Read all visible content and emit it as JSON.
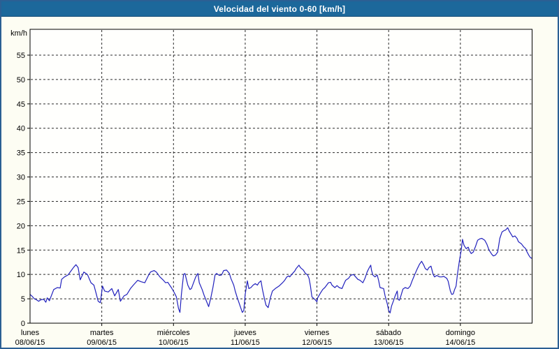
{
  "window": {
    "title": "Velocidad del viento 0-60 [km/h]",
    "titlebar_color": "#1c689b",
    "border_color": "#2b5f93",
    "background": "#fdfdf3"
  },
  "chart_data": {
    "type": "line",
    "title": "Velocidad del viento 0-60 [km/h]",
    "xlabel": "",
    "ylabel": "km/h",
    "ylim": [
      0,
      60
    ],
    "xlim_days": [
      0,
      7
    ],
    "grid": "dashed",
    "legend": "none",
    "plot_bg": "#fffffd",
    "grid_color": "#2a2a2a",
    "line_color": "#2121bd",
    "yticks": [
      "0",
      "5",
      "10",
      "15",
      "20",
      "25",
      "30",
      "35",
      "40",
      "45",
      "50",
      "55"
    ],
    "days": [
      {
        "name": "lunes",
        "date": "08/06/15"
      },
      {
        "name": "martes",
        "date": "09/06/15"
      },
      {
        "name": "miércoles",
        "date": "10/06/15"
      },
      {
        "name": "jueves",
        "date": "11/06/15"
      },
      {
        "name": "viernes",
        "date": "12/06/15"
      },
      {
        "name": "sábado",
        "date": "13/06/15"
      },
      {
        "name": "domingo",
        "date": "14/06/15"
      }
    ],
    "series": [
      {
        "name": "velocidad",
        "units": "km/h",
        "points": [
          [
            0.0,
            5.9
          ],
          [
            0.03,
            5.5
          ],
          [
            0.06,
            5.0
          ],
          [
            0.09,
            4.8
          ],
          [
            0.12,
            4.5
          ],
          [
            0.15,
            4.8
          ],
          [
            0.19,
            4.9
          ],
          [
            0.22,
            4.3
          ],
          [
            0.24,
            5.2
          ],
          [
            0.27,
            4.6
          ],
          [
            0.33,
            6.9
          ],
          [
            0.38,
            7.3
          ],
          [
            0.42,
            7.2
          ],
          [
            0.44,
            9.0
          ],
          [
            0.48,
            9.5
          ],
          [
            0.53,
            9.9
          ],
          [
            0.58,
            10.9
          ],
          [
            0.61,
            11.5
          ],
          [
            0.64,
            12.0
          ],
          [
            0.67,
            11.4
          ],
          [
            0.7,
            8.9
          ],
          [
            0.75,
            10.5
          ],
          [
            0.8,
            10.0
          ],
          [
            0.85,
            8.3
          ],
          [
            0.89,
            7.8
          ],
          [
            0.92,
            6.2
          ],
          [
            0.95,
            4.5
          ],
          [
            0.98,
            4.2
          ],
          [
            1.01,
            7.6
          ],
          [
            1.04,
            6.6
          ],
          [
            1.09,
            6.4
          ],
          [
            1.14,
            7.1
          ],
          [
            1.18,
            5.6
          ],
          [
            1.23,
            6.9
          ],
          [
            1.26,
            4.5
          ],
          [
            1.31,
            5.6
          ],
          [
            1.35,
            5.9
          ],
          [
            1.4,
            7.1
          ],
          [
            1.44,
            7.8
          ],
          [
            1.5,
            8.8
          ],
          [
            1.55,
            8.5
          ],
          [
            1.6,
            8.3
          ],
          [
            1.65,
            9.8
          ],
          [
            1.68,
            10.5
          ],
          [
            1.73,
            10.8
          ],
          [
            1.76,
            10.5
          ],
          [
            1.81,
            9.5
          ],
          [
            1.86,
            8.8
          ],
          [
            1.89,
            8.3
          ],
          [
            1.92,
            8.4
          ],
          [
            1.97,
            7.3
          ],
          [
            2.01,
            6.3
          ],
          [
            2.04,
            5.4
          ],
          [
            2.07,
            3.0
          ],
          [
            2.09,
            2.2
          ],
          [
            2.11,
            5.9
          ],
          [
            2.14,
            10.0
          ],
          [
            2.16,
            10.2
          ],
          [
            2.2,
            7.8
          ],
          [
            2.23,
            6.9
          ],
          [
            2.25,
            7.1
          ],
          [
            2.28,
            8.3
          ],
          [
            2.31,
            9.5
          ],
          [
            2.34,
            10.2
          ],
          [
            2.36,
            8.3
          ],
          [
            2.4,
            6.9
          ],
          [
            2.43,
            5.6
          ],
          [
            2.46,
            4.5
          ],
          [
            2.49,
            3.4
          ],
          [
            2.52,
            5.2
          ],
          [
            2.55,
            7.3
          ],
          [
            2.58,
            9.9
          ],
          [
            2.6,
            10.2
          ],
          [
            2.64,
            9.8
          ],
          [
            2.67,
            9.9
          ],
          [
            2.7,
            10.8
          ],
          [
            2.74,
            10.9
          ],
          [
            2.78,
            10.2
          ],
          [
            2.8,
            9.2
          ],
          [
            2.84,
            7.8
          ],
          [
            2.86,
            6.6
          ],
          [
            2.89,
            5.2
          ],
          [
            2.93,
            3.5
          ],
          [
            2.96,
            2.2
          ],
          [
            2.98,
            2.6
          ],
          [
            3.0,
            5.9
          ],
          [
            3.03,
            8.7
          ],
          [
            3.05,
            7.1
          ],
          [
            3.08,
            7.3
          ],
          [
            3.11,
            7.8
          ],
          [
            3.14,
            8.1
          ],
          [
            3.17,
            7.8
          ],
          [
            3.19,
            8.3
          ],
          [
            3.22,
            8.7
          ],
          [
            3.24,
            6.9
          ],
          [
            3.27,
            4.9
          ],
          [
            3.29,
            3.7
          ],
          [
            3.32,
            3.2
          ],
          [
            3.35,
            5.2
          ],
          [
            3.38,
            6.6
          ],
          [
            3.42,
            7.1
          ],
          [
            3.47,
            7.6
          ],
          [
            3.52,
            8.3
          ],
          [
            3.55,
            8.8
          ],
          [
            3.58,
            9.5
          ],
          [
            3.61,
            9.7
          ],
          [
            3.62,
            9.5
          ],
          [
            3.66,
            10.2
          ],
          [
            3.69,
            10.7
          ],
          [
            3.71,
            11.2
          ],
          [
            3.75,
            11.9
          ],
          [
            3.77,
            11.4
          ],
          [
            3.81,
            10.9
          ],
          [
            3.84,
            10.2
          ],
          [
            3.87,
            9.9
          ],
          [
            3.89,
            9.2
          ],
          [
            3.91,
            7.6
          ],
          [
            3.93,
            5.4
          ],
          [
            3.97,
            4.9
          ],
          [
            4.0,
            4.4
          ],
          [
            4.01,
            5.2
          ],
          [
            4.05,
            6.2
          ],
          [
            4.08,
            6.9
          ],
          [
            4.11,
            7.3
          ],
          [
            4.16,
            8.3
          ],
          [
            4.19,
            8.4
          ],
          [
            4.21,
            7.8
          ],
          [
            4.25,
            7.3
          ],
          [
            4.28,
            7.7
          ],
          [
            4.31,
            7.3
          ],
          [
            4.35,
            7.1
          ],
          [
            4.37,
            7.8
          ],
          [
            4.4,
            8.8
          ],
          [
            4.44,
            9.2
          ],
          [
            4.47,
            9.8
          ],
          [
            4.51,
            10.0
          ],
          [
            4.54,
            9.5
          ],
          [
            4.57,
            9.0
          ],
          [
            4.6,
            8.8
          ],
          [
            4.64,
            8.3
          ],
          [
            4.67,
            9.2
          ],
          [
            4.7,
            10.5
          ],
          [
            4.73,
            11.4
          ],
          [
            4.75,
            11.9
          ],
          [
            4.76,
            10.9
          ],
          [
            4.78,
            9.9
          ],
          [
            4.81,
            9.5
          ],
          [
            4.84,
            9.9
          ],
          [
            4.86,
            8.8
          ],
          [
            4.88,
            7.3
          ],
          [
            4.93,
            7.1
          ],
          [
            4.95,
            5.6
          ],
          [
            4.98,
            4.0
          ],
          [
            5.0,
            2.6
          ],
          [
            5.02,
            2.1
          ],
          [
            5.04,
            3.5
          ],
          [
            5.07,
            4.7
          ],
          [
            5.09,
            5.6
          ],
          [
            5.12,
            6.6
          ],
          [
            5.13,
            4.9
          ],
          [
            5.15,
            4.7
          ],
          [
            5.17,
            5.6
          ],
          [
            5.2,
            7.0
          ],
          [
            5.23,
            7.3
          ],
          [
            5.27,
            7.1
          ],
          [
            5.3,
            7.6
          ],
          [
            5.33,
            8.8
          ],
          [
            5.37,
            10.2
          ],
          [
            5.4,
            11.2
          ],
          [
            5.43,
            12.1
          ],
          [
            5.46,
            12.7
          ],
          [
            5.49,
            11.9
          ],
          [
            5.51,
            11.2
          ],
          [
            5.54,
            10.9
          ],
          [
            5.56,
            11.4
          ],
          [
            5.59,
            11.7
          ],
          [
            5.62,
            10.0
          ],
          [
            5.64,
            9.5
          ],
          [
            5.67,
            9.8
          ],
          [
            5.71,
            9.5
          ],
          [
            5.74,
            9.5
          ],
          [
            5.77,
            9.6
          ],
          [
            5.81,
            9.2
          ],
          [
            5.83,
            8.6
          ],
          [
            5.86,
            6.6
          ],
          [
            5.88,
            5.9
          ],
          [
            5.9,
            6.0
          ],
          [
            5.92,
            6.9
          ],
          [
            5.94,
            7.6
          ],
          [
            5.96,
            10.2
          ],
          [
            5.99,
            13.1
          ],
          [
            6.01,
            14.8
          ],
          [
            6.03,
            17.2
          ],
          [
            6.05,
            16.0
          ],
          [
            6.08,
            15.3
          ],
          [
            6.11,
            15.6
          ],
          [
            6.13,
            14.8
          ],
          [
            6.15,
            14.3
          ],
          [
            6.18,
            14.6
          ],
          [
            6.21,
            15.7
          ],
          [
            6.24,
            17.0
          ],
          [
            6.27,
            17.3
          ],
          [
            6.3,
            17.4
          ],
          [
            6.34,
            17.0
          ],
          [
            6.37,
            16.2
          ],
          [
            6.4,
            15.0
          ],
          [
            6.44,
            14.1
          ],
          [
            6.46,
            13.8
          ],
          [
            6.49,
            14.0
          ],
          [
            6.52,
            14.6
          ],
          [
            6.55,
            17.4
          ],
          [
            6.58,
            18.7
          ],
          [
            6.61,
            19.0
          ],
          [
            6.63,
            19.1
          ],
          [
            6.66,
            19.6
          ],
          [
            6.68,
            18.9
          ],
          [
            6.71,
            18.2
          ],
          [
            6.73,
            17.7
          ],
          [
            6.76,
            17.9
          ],
          [
            6.79,
            17.4
          ],
          [
            6.81,
            16.7
          ],
          [
            6.85,
            16.3
          ],
          [
            6.88,
            15.7
          ],
          [
            6.91,
            15.3
          ],
          [
            6.93,
            14.6
          ],
          [
            6.96,
            13.8
          ],
          [
            6.98,
            13.4
          ],
          [
            7.0,
            13.3
          ]
        ]
      }
    ]
  }
}
